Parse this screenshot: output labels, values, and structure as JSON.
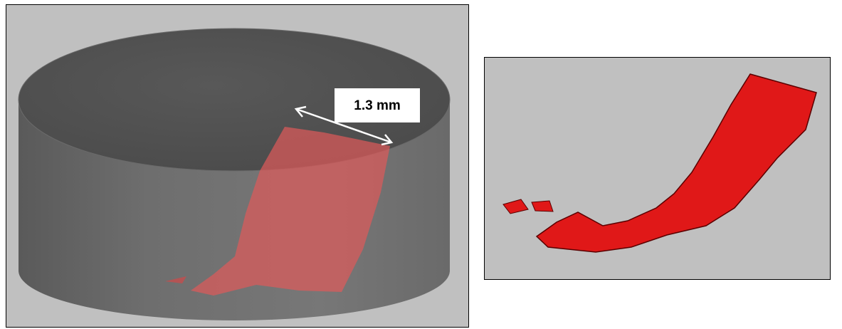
{
  "annotation": {
    "label": "1.3 mm"
  }
}
